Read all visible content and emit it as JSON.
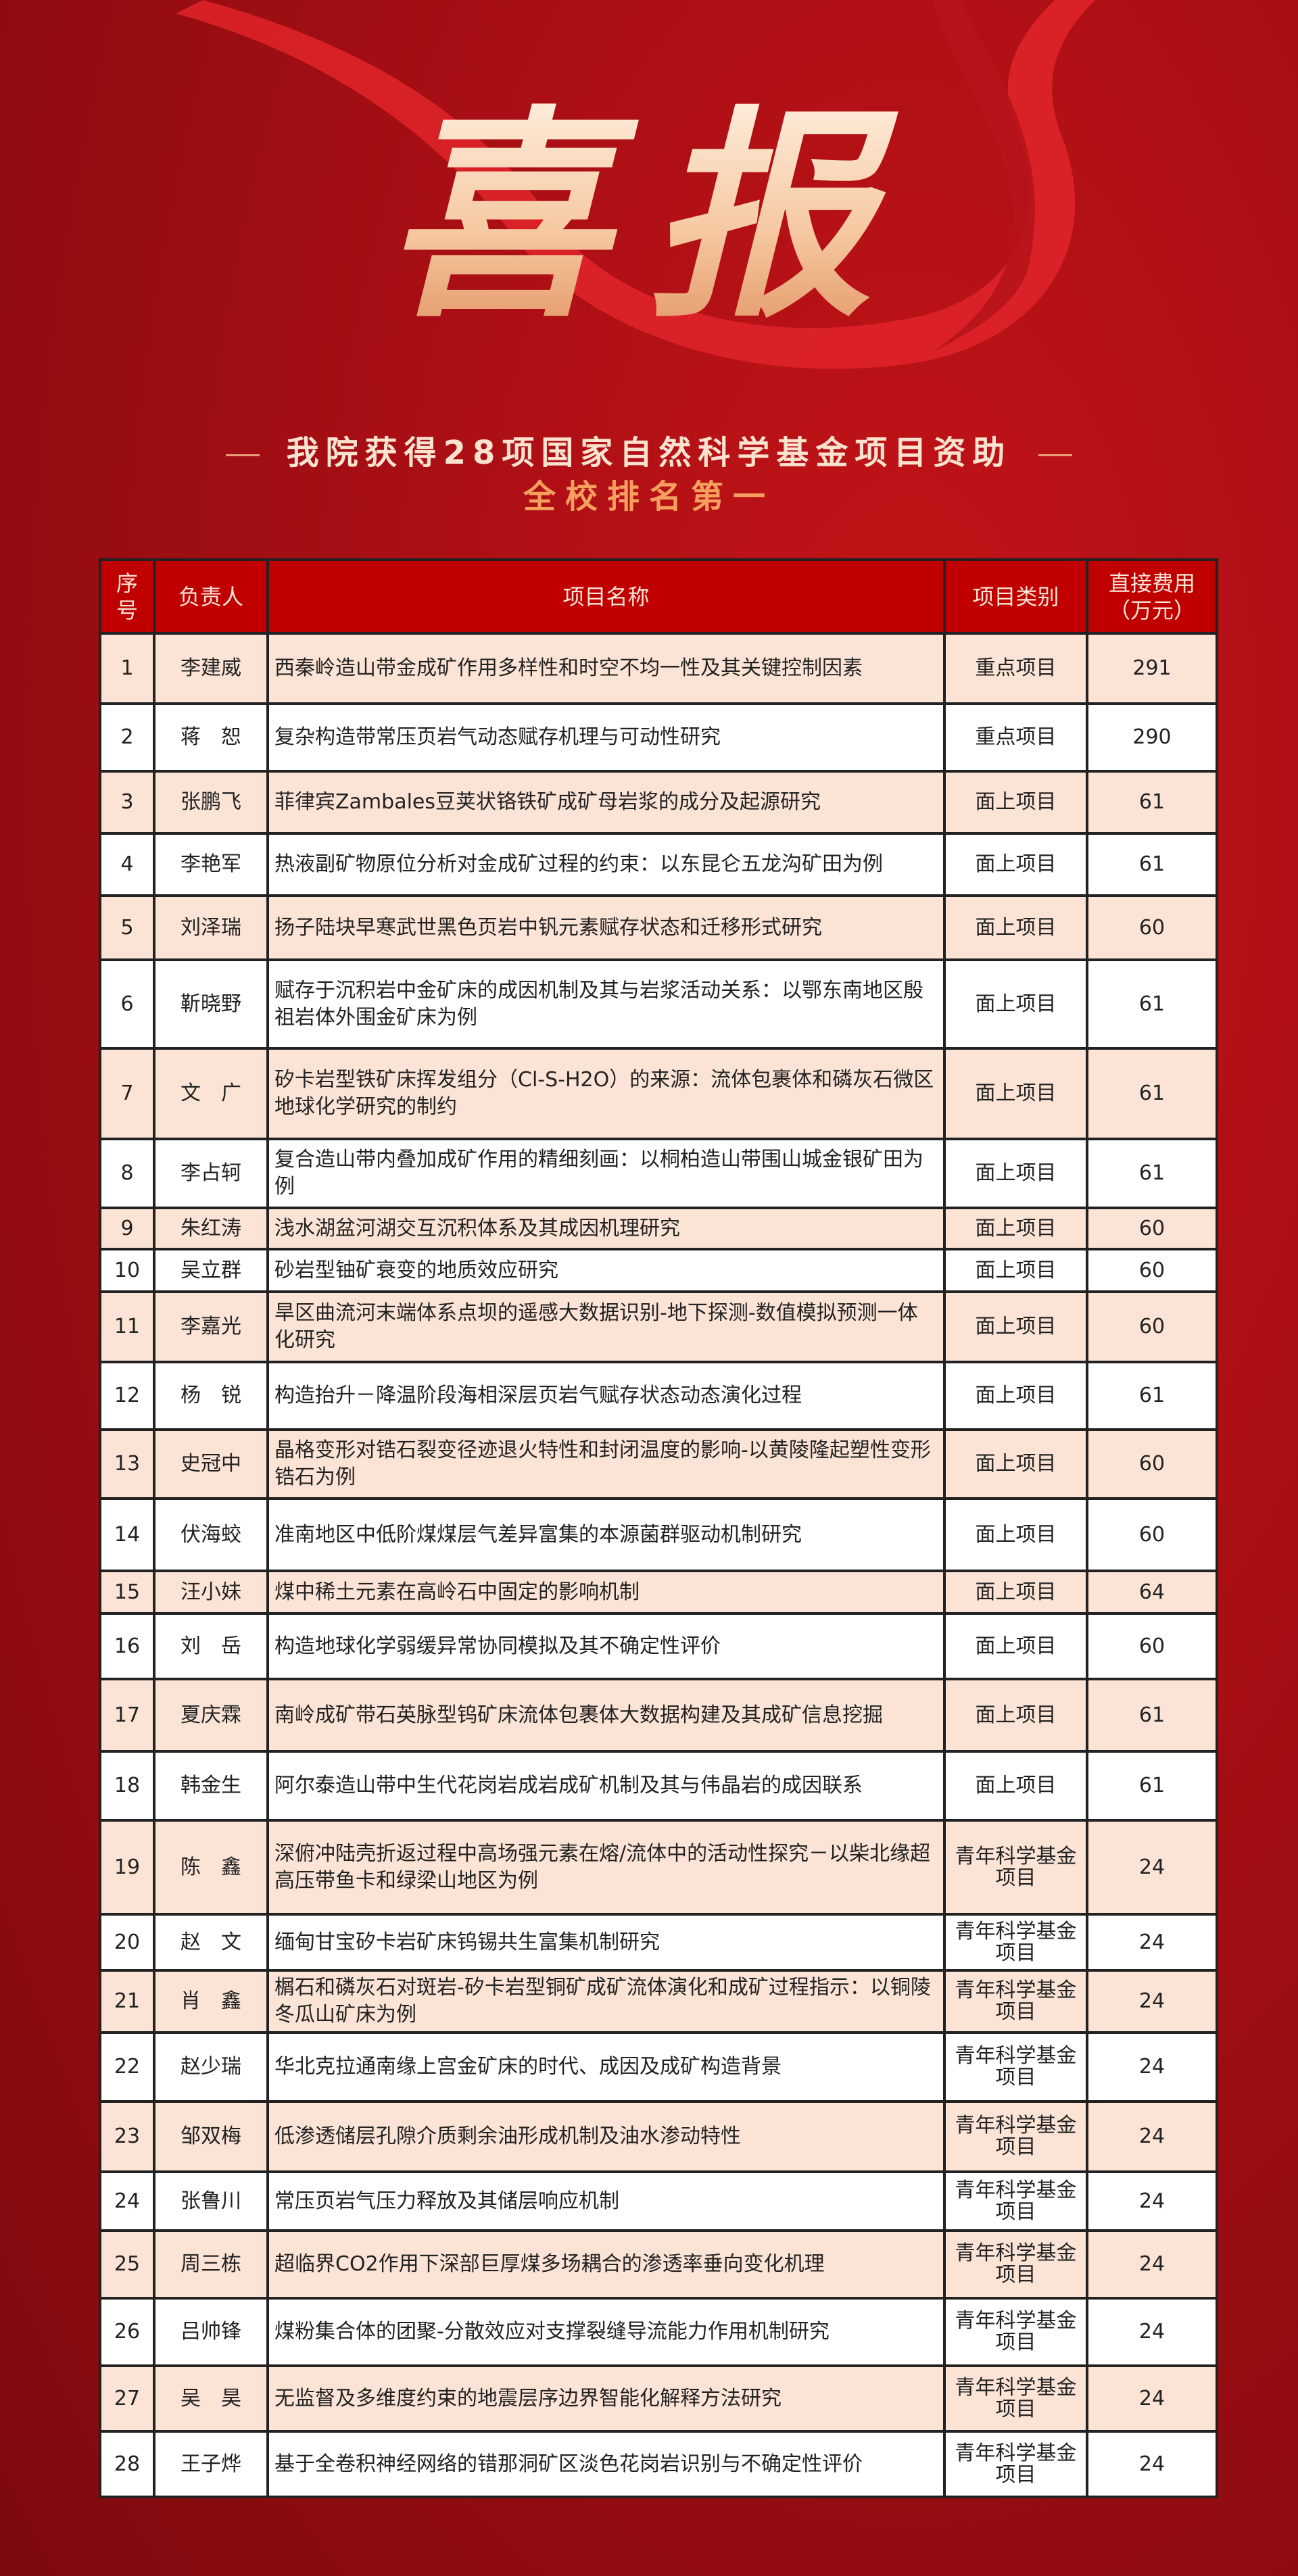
{
  "hero": "喜报",
  "title": "我院获得28项国家自然科学基金项目资助",
  "subtitle": "全校排名第一",
  "colors": {
    "background": "#a90f14",
    "header": "#c00000",
    "row_alt": "#fbe4d6"
  },
  "table": {
    "headers": [
      "序号",
      "负责人",
      "项目名称",
      "项目类别",
      "直接费用（万元）"
    ],
    "rows": [
      [
        "1",
        "李建威",
        "西秦岭造山带金成矿作用多样性和时空不均一性及其关键控制因素",
        "重点项目",
        "291"
      ],
      [
        "2",
        "蒋　恕",
        "复杂构造带常压页岩气动态赋存机理与可动性研究",
        "重点项目",
        "290"
      ],
      [
        "3",
        "张鹏飞",
        "菲律宾Zambales豆荚状铬铁矿成矿母岩浆的成分及起源研究",
        "面上项目",
        "61"
      ],
      [
        "4",
        "李艳军",
        "热液副矿物原位分析对金成矿过程的约束：以东昆仑五龙沟矿田为例",
        "面上项目",
        "61"
      ],
      [
        "5",
        "刘泽瑞",
        "扬子陆块早寒武世黑色页岩中钒元素赋存状态和迁移形式研究",
        "面上项目",
        "60"
      ],
      [
        "6",
        "靳晓野",
        "赋存于沉积岩中金矿床的成因机制及其与岩浆活动关系：以鄂东南地区殷祖岩体外围金矿床为例",
        "面上项目",
        "61"
      ],
      [
        "7",
        "文　广",
        "矽卡岩型铁矿床挥发组分（Cl-S-H2O）的来源：流体包裹体和磷灰石微区地球化学研究的制约",
        "面上项目",
        "61"
      ],
      [
        "8",
        "李占轲",
        "复合造山带内叠加成矿作用的精细刻画：以桐柏造山带围山城金银矿田为例",
        "面上项目",
        "61"
      ],
      [
        "9",
        "朱红涛",
        "浅水湖盆河湖交互沉积体系及其成因机理研究",
        "面上项目",
        "60"
      ],
      [
        "10",
        "吴立群",
        "砂岩型铀矿衰变的地质效应研究",
        "面上项目",
        "60"
      ],
      [
        "11",
        "李嘉光",
        "旱区曲流河末端体系点坝的遥感大数据识别-地下探测-数值模拟预测一体化研究",
        "面上项目",
        "60"
      ],
      [
        "12",
        "杨　锐",
        "构造抬升－降温阶段海相深层页岩气赋存状态动态演化过程",
        "面上项目",
        "61"
      ],
      [
        "13",
        "史冠中",
        "晶格变形对锆石裂变径迹退火特性和封闭温度的影响-以黄陵隆起塑性变形锆石为例",
        "面上项目",
        "60"
      ],
      [
        "14",
        "伏海蛟",
        "准南地区中低阶煤煤层气差异富集的本源菌群驱动机制研究",
        "面上项目",
        "60"
      ],
      [
        "15",
        "汪小妹",
        "煤中稀土元素在高岭石中固定的影响机制",
        "面上项目",
        "64"
      ],
      [
        "16",
        "刘　岳",
        "构造地球化学弱缓异常协同模拟及其不确定性评价",
        "面上项目",
        "60"
      ],
      [
        "17",
        "夏庆霖",
        "南岭成矿带石英脉型钨矿床流体包裹体大数据构建及其成矿信息挖掘",
        "面上项目",
        "61"
      ],
      [
        "18",
        "韩金生",
        "阿尔泰造山带中生代花岗岩成岩成矿机制及其与伟晶岩的成因联系",
        "面上项目",
        "61"
      ],
      [
        "19",
        "陈　鑫",
        "深俯冲陆壳折返过程中高场强元素在熔/流体中的活动性探究－以柴北缘超高压带鱼卡和绿梁山地区为例",
        "青年科学基金项目",
        "24"
      ],
      [
        "20",
        "赵　文",
        "缅甸甘宝矽卡岩矿床钨锡共生富集机制研究",
        "青年科学基金项目",
        "24"
      ],
      [
        "21",
        "肖　鑫",
        "榍石和磷灰石对斑岩-矽卡岩型铜矿成矿流体演化和成矿过程指示：以铜陵冬瓜山矿床为例",
        "青年科学基金项目",
        "24"
      ],
      [
        "22",
        "赵少瑞",
        "华北克拉通南缘上宫金矿床的时代、成因及成矿构造背景",
        "青年科学基金项目",
        "24"
      ],
      [
        "23",
        "邹双梅",
        "低渗透储层孔隙介质剩余油形成机制及油水渗动特性",
        "青年科学基金项目",
        "24"
      ],
      [
        "24",
        "张鲁川",
        "常压页岩气压力释放及其储层响应机制",
        "青年科学基金项目",
        "24"
      ],
      [
        "25",
        "周三栋",
        "超临界CO2作用下深部巨厚煤多场耦合的渗透率垂向变化机理",
        "青年科学基金项目",
        "24"
      ],
      [
        "26",
        "吕帅锋",
        "煤粉集合体的团聚-分散效应对支撑裂缝导流能力作用机制研究",
        "青年科学基金项目",
        "24"
      ],
      [
        "27",
        "吴　昊",
        "无监督及多维度约束的地震层序边界智能化解释方法研究",
        "青年科学基金项目",
        "24"
      ],
      [
        "28",
        "王子烨",
        "基于全卷积神经网络的错那洞矿区淡色花岗岩识别与不确定性评价",
        "青年科学基金项目",
        "24"
      ]
    ]
  }
}
